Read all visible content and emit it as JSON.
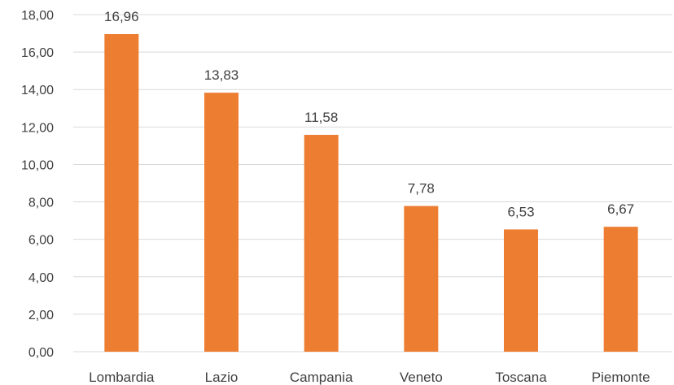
{
  "chart_data": {
    "type": "bar",
    "categories": [
      "Lombardia",
      "Lazio",
      "Campania",
      "Veneto",
      "Toscana",
      "Piemonte"
    ],
    "values": [
      16.96,
      13.83,
      11.58,
      7.78,
      6.53,
      6.67
    ],
    "data_labels": [
      "16,96",
      "13,83",
      "11,58",
      "7,78",
      "6,53",
      "6,67"
    ],
    "y_ticks": [
      "0,00",
      "2,00",
      "4,00",
      "6,00",
      "8,00",
      "10,00",
      "12,00",
      "14,00",
      "16,00",
      "18,00"
    ],
    "ylim": [
      0,
      18
    ],
    "y_step": 2,
    "grid": true,
    "legend": "none",
    "colors": {
      "bar": "#ed7d31",
      "grid": "#d9d9d9",
      "text": "#404040"
    }
  }
}
